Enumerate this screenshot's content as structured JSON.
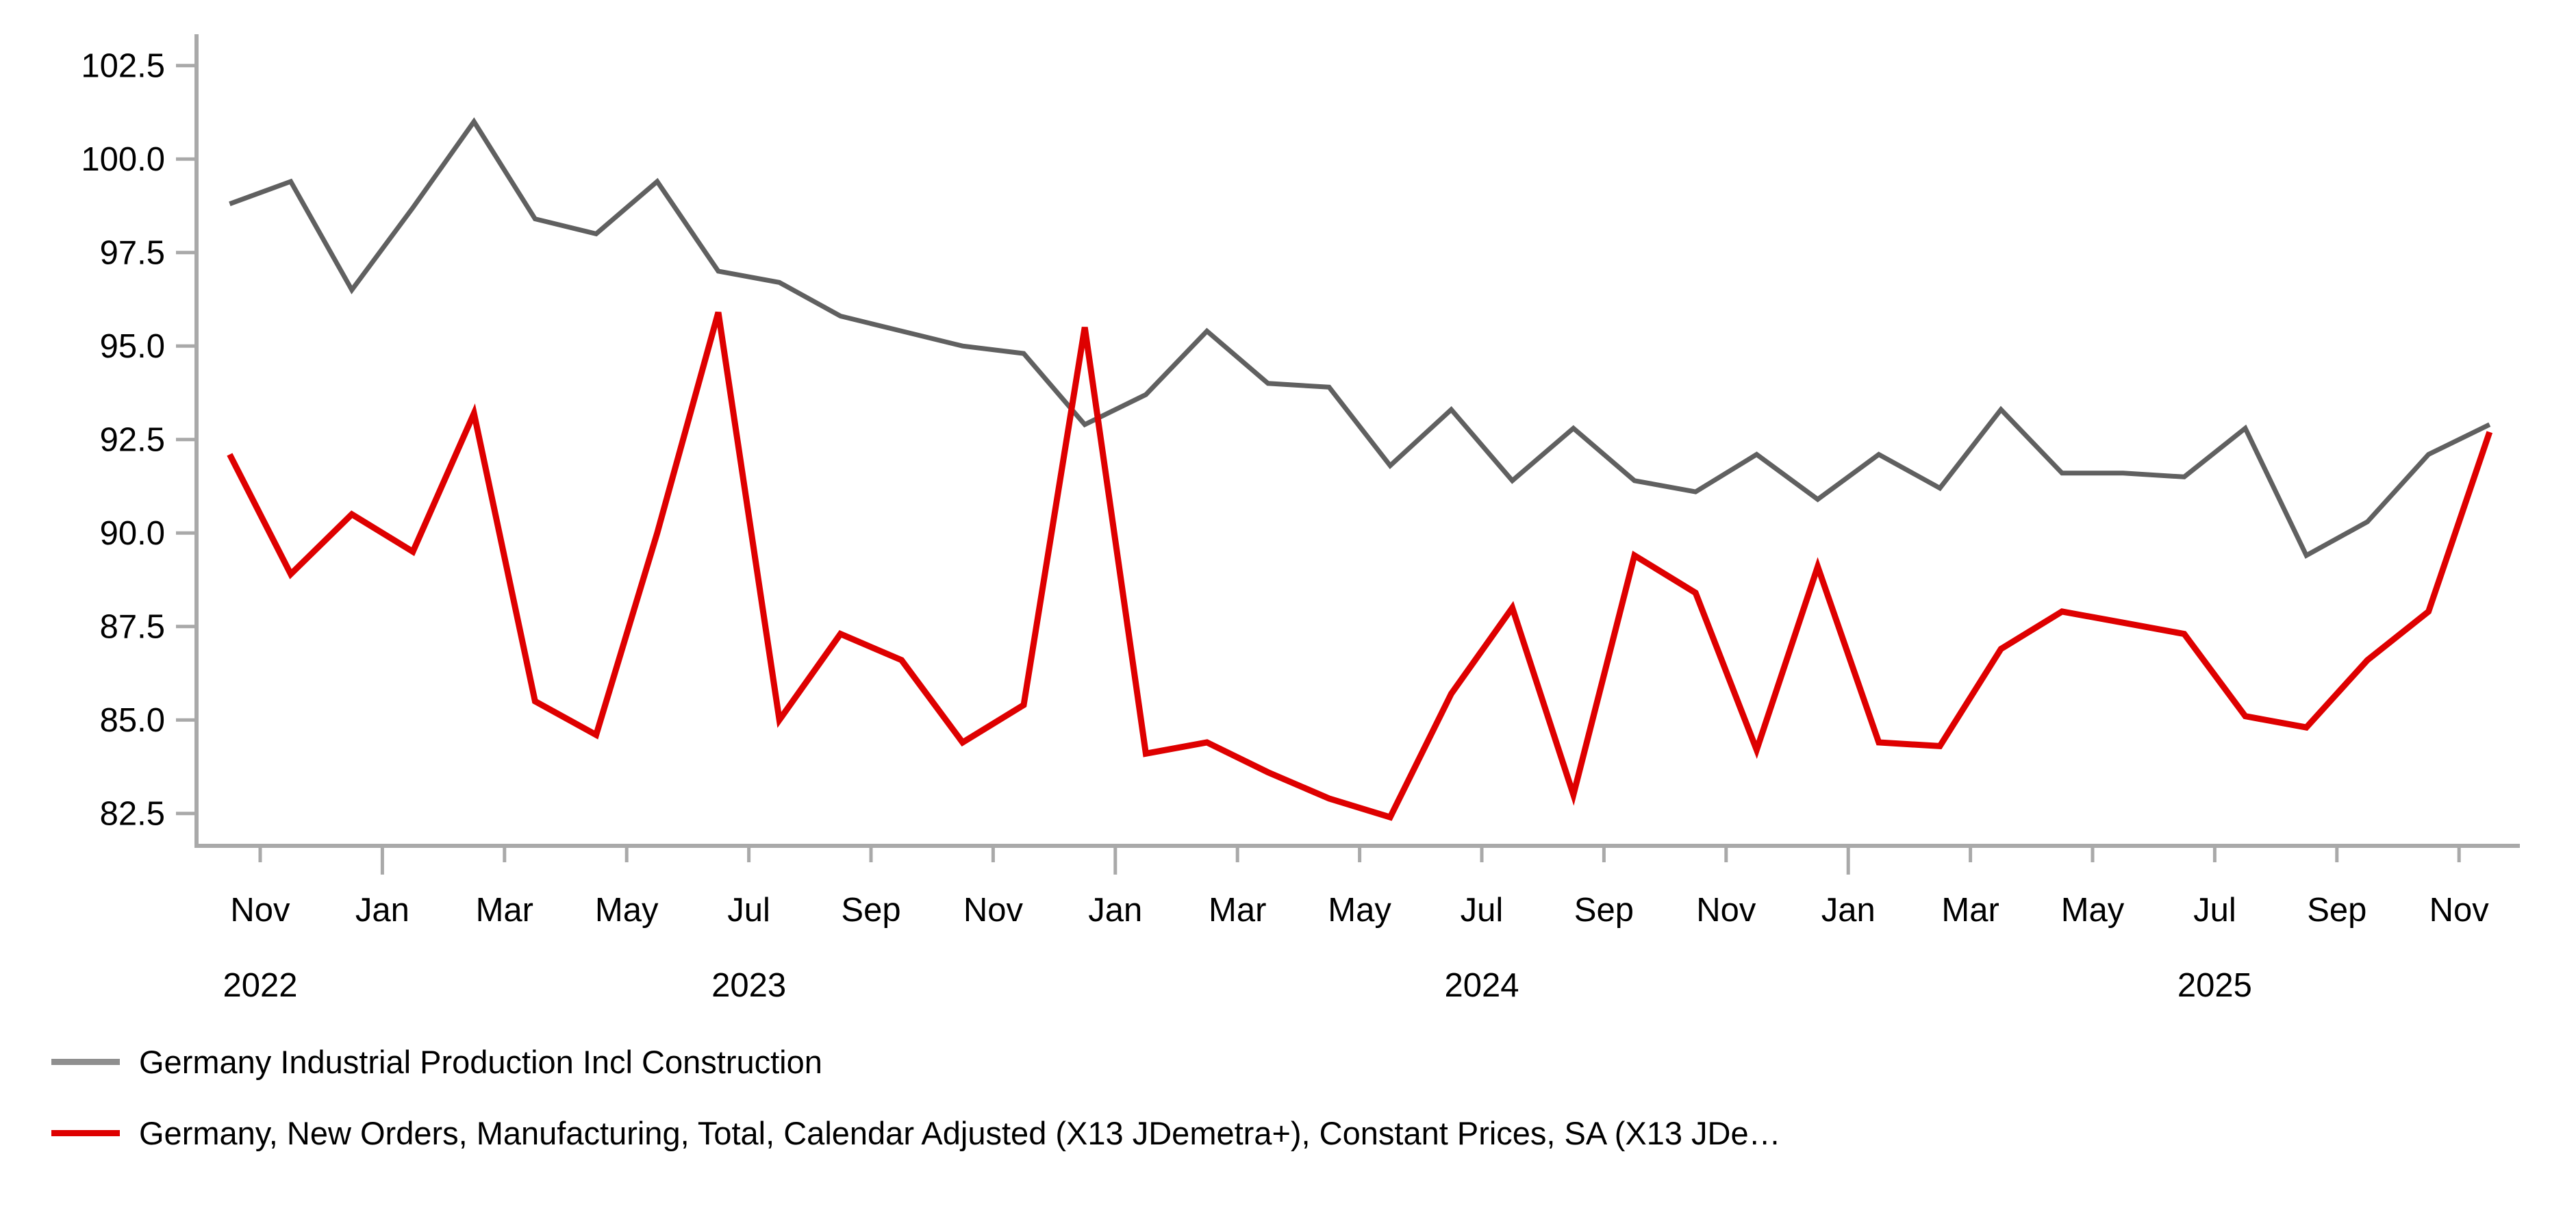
{
  "chart_data": {
    "type": "line",
    "title": "",
    "xlabel": "",
    "ylabel": "",
    "grid": false,
    "legend_position": "bottom-left",
    "ylim": [
      81.6,
      103.3
    ],
    "yticks": [
      "82.5",
      "85.0",
      "87.5",
      "90.0",
      "92.5",
      "95.0",
      "97.5",
      "100.0",
      "102.5"
    ],
    "x": [
      "Oct 2022",
      "Nov 2022",
      "Dec 2022",
      "Jan 2023",
      "Feb 2023",
      "Mar 2023",
      "Apr 2023",
      "May 2023",
      "Jun 2023",
      "Jul 2023",
      "Aug 2023",
      "Sep 2023",
      "Oct 2023",
      "Nov 2023",
      "Dec 2023",
      "Jan 2024",
      "Feb 2024",
      "Mar 2024",
      "Apr 2024",
      "May 2024",
      "Jun 2024",
      "Jul 2024",
      "Aug 2024",
      "Sep 2024",
      "Oct 2024",
      "Nov 2024",
      "Dec 2024",
      "Jan 2025",
      "Feb 2025",
      "Mar 2025",
      "Apr 2025",
      "May 2025",
      "Jun 2025",
      "Jul 2025",
      "Aug 2025",
      "Sep 2025",
      "Oct 2025",
      "Nov 2025"
    ],
    "x_tick_months": [
      {
        "m": 1,
        "label": "Nov",
        "long": false
      },
      {
        "m": 3,
        "label": "Jan",
        "long": true
      },
      {
        "m": 5,
        "label": "Mar",
        "long": false
      },
      {
        "m": 7,
        "label": "May",
        "long": false
      },
      {
        "m": 9,
        "label": "Jul",
        "long": false
      },
      {
        "m": 11,
        "label": "Sep",
        "long": false
      },
      {
        "m": 13,
        "label": "Nov",
        "long": false
      },
      {
        "m": 15,
        "label": "Jan",
        "long": true
      },
      {
        "m": 17,
        "label": "Mar",
        "long": false
      },
      {
        "m": 19,
        "label": "May",
        "long": false
      },
      {
        "m": 21,
        "label": "Jul",
        "long": false
      },
      {
        "m": 23,
        "label": "Sep",
        "long": false
      },
      {
        "m": 25,
        "label": "Nov",
        "long": false
      },
      {
        "m": 27,
        "label": "Jan",
        "long": true
      },
      {
        "m": 29,
        "label": "Mar",
        "long": false
      },
      {
        "m": 31,
        "label": "May",
        "long": false
      },
      {
        "m": 33,
        "label": "Jul",
        "long": false
      },
      {
        "m": 35,
        "label": "Sep",
        "long": false
      },
      {
        "m": 37,
        "label": "Nov",
        "long": false
      }
    ],
    "year_labels": [
      {
        "m": 1,
        "text": "2022"
      },
      {
        "m": 9,
        "text": "2023"
      },
      {
        "m": 21,
        "text": "2024"
      },
      {
        "m": 33,
        "text": "2025"
      }
    ],
    "series": [
      {
        "name": "Germany Industrial Production Incl Construction",
        "color": "#606060",
        "legend_swatch_color": "#8f8f8f",
        "stroke_width": 7,
        "values": [
          98.8,
          99.4,
          96.5,
          98.7,
          101.0,
          98.4,
          98.0,
          99.4,
          97.0,
          96.7,
          95.8,
          95.4,
          95.0,
          94.8,
          92.9,
          93.7,
          95.4,
          94.0,
          93.9,
          91.8,
          93.3,
          91.4,
          92.8,
          91.4,
          91.1,
          92.1,
          90.9,
          92.1,
          91.2,
          93.3,
          91.6,
          91.6,
          91.5,
          92.8,
          89.4,
          90.3,
          92.1,
          92.9
        ]
      },
      {
        "name": "Germany, New Orders, Manufacturing, Total, Calendar Adjusted (X13 JDemetra+), Constant Prices, SA (X13 JDe…",
        "color": "#de0000",
        "legend_swatch_color": "#de0000",
        "stroke_width": 9,
        "values": [
          92.1,
          88.9,
          90.5,
          89.5,
          93.2,
          85.5,
          84.6,
          90.0,
          95.9,
          85.0,
          87.3,
          86.6,
          84.4,
          85.4,
          95.5,
          84.1,
          84.4,
          83.6,
          82.9,
          82.4,
          85.7,
          88.0,
          83.0,
          89.4,
          88.4,
          84.2,
          89.1,
          84.4,
          84.3,
          86.9,
          87.9,
          87.6,
          87.3,
          85.1,
          84.8,
          86.6,
          87.9,
          92.7
        ]
      }
    ],
    "axis_color": "#a9a9a9",
    "tick_label_color": "#000000"
  },
  "legend": {
    "series_0_label": "Germany Industrial Production Incl Construction",
    "series_1_label": "Germany, New Orders, Manufacturing, Total, Calendar Adjusted (X13 JDemetra+), Constant Prices, SA (X13 JDe…"
  }
}
